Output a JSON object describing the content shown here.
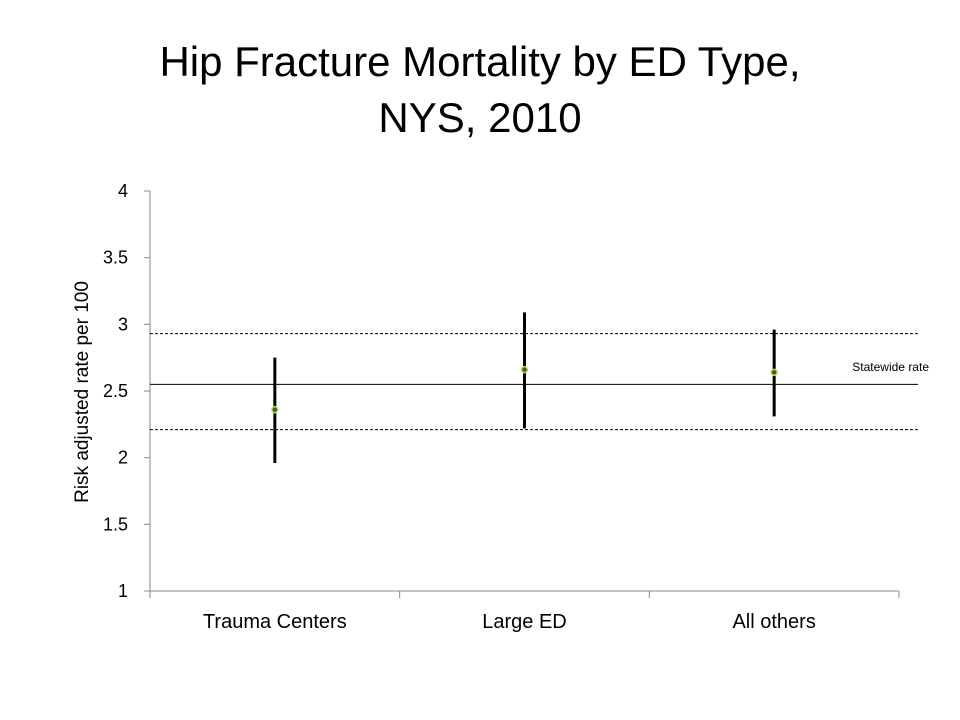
{
  "title": {
    "line1": "Hip Fracture Mortality by ED Type,",
    "line2": "NYS, 2010"
  },
  "chart_data": {
    "type": "scatter",
    "ylabel": "Risk adjusted rate  per 100",
    "ylim": [
      1,
      4
    ],
    "yticks": [
      1,
      1.5,
      2,
      2.5,
      3,
      3.5,
      4
    ],
    "ytick_labels": [
      "1",
      "1.5",
      "2",
      "2.5",
      "3",
      "3.5",
      "4"
    ],
    "categories": [
      "Trauma Centers",
      "Large ED",
      "All others"
    ],
    "series": [
      {
        "values": [
          2.36,
          2.66,
          2.64
        ],
        "lower": [
          1.96,
          2.22,
          2.31
        ],
        "upper": [
          2.75,
          3.09,
          2.96
        ]
      }
    ],
    "statewide_rate": 2.55,
    "statewide_lower": 2.21,
    "statewide_upper": 2.93,
    "statewide_label": "Statewide rate",
    "grid": false,
    "legend": "none",
    "colors": {
      "marker_fill": "#3f5f1f",
      "marker_stroke": "#b8d86b",
      "line": "#000000"
    }
  }
}
